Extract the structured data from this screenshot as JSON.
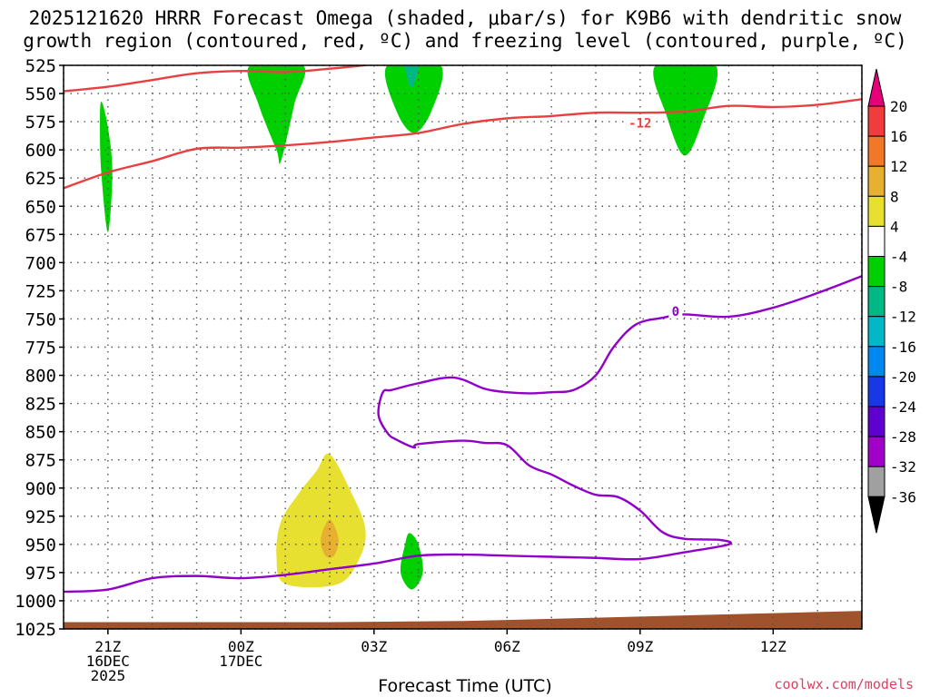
{
  "title_line1": "2025121620 HRRR Forecast Omega (shaded, μbar/s) for K9B6 with dendritic snow",
  "title_line2": "growth region (contoured, red, ºC) and freezing level (contoured, purple, ºC)",
  "credit": "coolwx.com/models",
  "chart_data": {
    "type": "contour",
    "xlabel": "Forecast Time (UTC)",
    "ylabel": "",
    "y_axis": {
      "units": "hPa",
      "inverted": true,
      "ylim": [
        1025,
        525
      ],
      "ticks": [
        525,
        550,
        575,
        600,
        625,
        650,
        675,
        700,
        725,
        750,
        775,
        800,
        825,
        850,
        875,
        900,
        925,
        950,
        975,
        1000,
        1025
      ]
    },
    "x_axis": {
      "units": "hours from 2025-12-16 20Z",
      "xlim": [
        0,
        18
      ],
      "ticks": [
        {
          "x": 1,
          "label": [
            "21Z",
            "16DEC",
            "2025"
          ]
        },
        {
          "x": 4,
          "label": [
            "00Z",
            "17DEC"
          ]
        },
        {
          "x": 7,
          "label": [
            "03Z"
          ]
        },
        {
          "x": 10,
          "label": [
            "06Z"
          ]
        },
        {
          "x": 13,
          "label": [
            "09Z"
          ]
        },
        {
          "x": 16,
          "label": [
            "12Z"
          ]
        }
      ]
    },
    "grid": true,
    "colorbar": {
      "labels": [
        "20",
        "16",
        "12",
        "8",
        "4",
        "-4",
        "-8",
        "-12",
        "-16",
        "-20",
        "-24",
        "-28",
        "-32",
        "-36"
      ],
      "colors": [
        "#e8007a",
        "#f03c3c",
        "#f07828",
        "#e8b030",
        "#e8e030",
        "#ffffff",
        "#00d000",
        "#00b884",
        "#00b8c8",
        "#0088f0",
        "#1838e8",
        "#6000d0",
        "#a000c8",
        "#a0a0a0",
        "#000000"
      ]
    },
    "contours": [
      {
        "color": "#e84040",
        "label": "",
        "label_at": null,
        "points": [
          [
            0,
            548
          ],
          [
            1,
            544
          ],
          [
            2,
            538
          ],
          [
            3,
            532
          ],
          [
            4,
            530
          ],
          [
            5,
            531
          ],
          [
            6,
            528
          ],
          [
            7,
            524
          ]
        ]
      },
      {
        "color": "#e84040",
        "label": "-12",
        "label_at": [
          13,
          576
        ],
        "points": [
          [
            0,
            634
          ],
          [
            1,
            620
          ],
          [
            2,
            610
          ],
          [
            3,
            599
          ],
          [
            4,
            598
          ],
          [
            5,
            596
          ],
          [
            6,
            593
          ],
          [
            7,
            589
          ],
          [
            8,
            585
          ],
          [
            9,
            577
          ],
          [
            10,
            572
          ],
          [
            11,
            570
          ],
          [
            12,
            567
          ],
          [
            13,
            567
          ],
          [
            14,
            566
          ],
          [
            15,
            561
          ],
          [
            16,
            562
          ],
          [
            17,
            560
          ],
          [
            18,
            555
          ]
        ]
      },
      {
        "color": "#9000c8",
        "label": "0",
        "label_at": [
          13.8,
          743
        ],
        "points": [
          [
            0,
            992
          ],
          [
            1,
            990
          ],
          [
            2,
            980
          ],
          [
            3,
            978
          ],
          [
            4,
            980
          ],
          [
            5,
            977
          ],
          [
            6,
            972
          ],
          [
            7,
            967
          ],
          [
            8,
            960
          ],
          [
            9,
            959
          ],
          [
            10,
            960
          ],
          [
            11,
            961
          ],
          [
            12,
            962
          ],
          [
            13,
            963
          ],
          [
            14,
            957
          ],
          [
            15,
            950
          ],
          [
            14.8,
            946
          ],
          [
            14,
            945
          ],
          [
            13.5,
            939
          ],
          [
            13,
            920
          ],
          [
            12.5,
            908
          ],
          [
            12,
            906
          ],
          [
            11.5,
            898
          ],
          [
            11,
            888
          ],
          [
            10.5,
            880
          ],
          [
            10,
            862
          ],
          [
            9.5,
            860
          ],
          [
            9,
            858
          ],
          [
            8,
            861
          ],
          [
            7.9,
            864
          ],
          [
            7.5,
            857
          ],
          [
            7.3,
            851
          ],
          [
            7.1,
            835
          ],
          [
            7.2,
            815
          ],
          [
            7.4,
            813
          ],
          [
            8,
            807
          ],
          [
            8.8,
            802
          ],
          [
            9.5,
            812
          ],
          [
            10,
            815
          ],
          [
            10.5,
            816
          ],
          [
            11,
            815
          ],
          [
            11.5,
            813
          ],
          [
            12,
            800
          ],
          [
            12.4,
            775
          ],
          [
            12.9,
            755
          ],
          [
            13.5,
            749
          ],
          [
            14,
            746
          ],
          [
            15,
            748
          ],
          [
            16,
            740
          ],
          [
            17,
            727
          ],
          [
            18,
            712
          ]
        ]
      }
    ],
    "omega_regions": [
      {
        "value_range": [
          -8,
          -4
        ],
        "color": "#00d000",
        "points": [
          [
            0.85,
            557
          ],
          [
            1.0,
            580
          ],
          [
            1.1,
            620
          ],
          [
            1.0,
            673
          ],
          [
            0.85,
            620
          ],
          [
            0.82,
            580
          ]
        ]
      },
      {
        "value_range": [
          -8,
          -4
        ],
        "color": "#00d000",
        "points": [
          [
            4.2,
            525
          ],
          [
            5.4,
            525
          ],
          [
            5.2,
            560
          ],
          [
            4.9,
            610
          ],
          [
            4.8,
            600
          ],
          [
            4.4,
            560
          ]
        ]
      },
      {
        "value_range": [
          -8,
          -4
        ],
        "color": "#00d000",
        "points": [
          [
            7.3,
            525
          ],
          [
            8.5,
            525
          ],
          [
            8.3,
            565
          ],
          [
            7.9,
            585
          ],
          [
            7.5,
            565
          ]
        ]
      },
      {
        "value_range": [
          -12,
          -8
        ],
        "color": "#00b884",
        "points": [
          [
            7.7,
            525
          ],
          [
            8.0,
            525
          ],
          [
            7.85,
            545
          ]
        ]
      },
      {
        "value_range": [
          -8,
          -4
        ],
        "color": "#00d000",
        "points": [
          [
            13.35,
            525
          ],
          [
            14.7,
            525
          ],
          [
            14.4,
            575
          ],
          [
            14.0,
            605
          ],
          [
            13.6,
            570
          ]
        ]
      },
      {
        "value_range": [
          -8,
          -4
        ],
        "color": "#00d000",
        "points": [
          [
            7.8,
            940
          ],
          [
            8.0,
            950
          ],
          [
            8.1,
            975
          ],
          [
            7.85,
            990
          ],
          [
            7.6,
            975
          ],
          [
            7.7,
            950
          ]
        ]
      },
      {
        "value_range": [
          4,
          8
        ],
        "color": "#e8e030",
        "points": [
          [
            6.0,
            870
          ],
          [
            6.5,
            905
          ],
          [
            6.8,
            935
          ],
          [
            6.7,
            960
          ],
          [
            6.2,
            985
          ],
          [
            5.0,
            985
          ],
          [
            4.8,
            960
          ],
          [
            4.9,
            930
          ],
          [
            5.3,
            905
          ],
          [
            5.7,
            885
          ]
        ]
      },
      {
        "value_range": [
          8,
          12
        ],
        "color": "#e8b030",
        "points": [
          [
            6.0,
            928
          ],
          [
            6.2,
            945
          ],
          [
            6.1,
            960
          ],
          [
            5.9,
            960
          ],
          [
            5.8,
            945
          ]
        ]
      }
    ],
    "terrain": {
      "color": "#a0522d",
      "surface_pressure": [
        [
          0,
          1019
        ],
        [
          3,
          1019
        ],
        [
          6,
          1019
        ],
        [
          9,
          1018
        ],
        [
          10,
          1017
        ],
        [
          11,
          1016
        ],
        [
          12,
          1015
        ],
        [
          13,
          1014
        ],
        [
          14,
          1013
        ],
        [
          15,
          1012
        ],
        [
          16,
          1011
        ],
        [
          17,
          1010
        ],
        [
          18,
          1009
        ]
      ]
    }
  }
}
